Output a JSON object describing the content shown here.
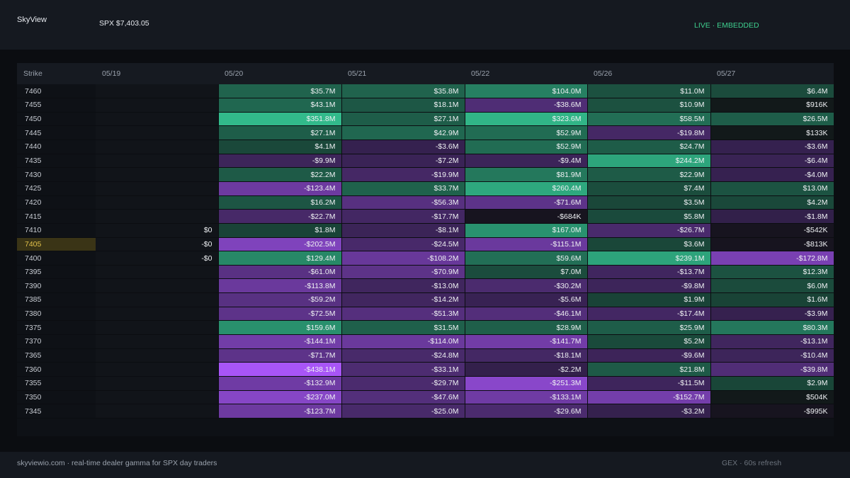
{
  "header": {
    "brand": "SkyView",
    "spx": "SPX $7,403.05",
    "live": "LIVE · EMBEDDED"
  },
  "grid": {
    "strike_header": "Strike",
    "dates": [
      "05/19",
      "05/20",
      "05/21",
      "05/22",
      "05/26",
      "05/27"
    ],
    "current_strike": "7405",
    "rows": [
      {
        "strike": "7460",
        "cells": [
          "",
          "$35.7M",
          "$35.8M",
          "$104.0M",
          "$11.0M",
          "$6.4M"
        ]
      },
      {
        "strike": "7455",
        "cells": [
          "",
          "$43.1M",
          "$18.1M",
          "-$38.6M",
          "$10.9M",
          "$916K"
        ]
      },
      {
        "strike": "7450",
        "cells": [
          "",
          "$351.8M",
          "$27.1M",
          "$323.6M",
          "$58.5M",
          "$26.5M"
        ]
      },
      {
        "strike": "7445",
        "cells": [
          "",
          "$27.1M",
          "$42.9M",
          "$52.9M",
          "-$19.8M",
          "$133K"
        ]
      },
      {
        "strike": "7440",
        "cells": [
          "",
          "$4.1M",
          "-$3.6M",
          "$52.9M",
          "$24.7M",
          "-$3.6M"
        ]
      },
      {
        "strike": "7435",
        "cells": [
          "",
          "-$9.9M",
          "-$7.2M",
          "-$9.4M",
          "$244.2M",
          "-$6.4M"
        ]
      },
      {
        "strike": "7430",
        "cells": [
          "",
          "$22.2M",
          "-$19.9M",
          "$81.9M",
          "$22.9M",
          "-$4.0M"
        ]
      },
      {
        "strike": "7425",
        "cells": [
          "",
          "-$123.4M",
          "$33.7M",
          "$260.4M",
          "$7.4M",
          "$13.0M"
        ]
      },
      {
        "strike": "7420",
        "cells": [
          "",
          "$16.2M",
          "-$56.3M",
          "-$71.6M",
          "$3.5M",
          "$4.2M"
        ]
      },
      {
        "strike": "7415",
        "cells": [
          "",
          "-$22.7M",
          "-$17.7M",
          "-$684K",
          "$5.8M",
          "-$1.8M"
        ]
      },
      {
        "strike": "7410",
        "cells": [
          "$0",
          "$1.8M",
          "-$8.1M",
          "$167.0M",
          "-$26.7M",
          "-$542K"
        ]
      },
      {
        "strike": "7405",
        "cells": [
          "-$0",
          "-$202.5M",
          "-$24.5M",
          "-$115.1M",
          "$3.6M",
          "-$813K"
        ]
      },
      {
        "strike": "7400",
        "cells": [
          "-$0",
          "$129.4M",
          "-$108.2M",
          "$59.6M",
          "$239.1M",
          "-$172.8M"
        ]
      },
      {
        "strike": "7395",
        "cells": [
          "",
          "-$61.0M",
          "-$70.9M",
          "$7.0M",
          "-$13.7M",
          "$12.3M"
        ]
      },
      {
        "strike": "7390",
        "cells": [
          "",
          "-$113.8M",
          "-$13.0M",
          "-$30.2M",
          "-$9.8M",
          "$6.0M"
        ]
      },
      {
        "strike": "7385",
        "cells": [
          "",
          "-$59.2M",
          "-$14.2M",
          "-$5.6M",
          "$1.9M",
          "$1.6M"
        ]
      },
      {
        "strike": "7380",
        "cells": [
          "",
          "-$72.5M",
          "-$51.3M",
          "-$46.1M",
          "-$17.4M",
          "-$3.9M"
        ]
      },
      {
        "strike": "7375",
        "cells": [
          "",
          "$159.6M",
          "$31.5M",
          "$28.9M",
          "$25.9M",
          "$80.3M"
        ]
      },
      {
        "strike": "7370",
        "cells": [
          "",
          "-$144.1M",
          "-$114.0M",
          "-$141.7M",
          "$5.2M",
          "-$13.1M"
        ]
      },
      {
        "strike": "7365",
        "cells": [
          "",
          "-$71.7M",
          "-$24.8M",
          "-$18.1M",
          "-$9.6M",
          "-$10.4M"
        ]
      },
      {
        "strike": "7360",
        "cells": [
          "",
          "-$438.1M",
          "-$33.1M",
          "-$2.2M",
          "$21.8M",
          "-$39.8M"
        ]
      },
      {
        "strike": "7355",
        "cells": [
          "",
          "-$132.9M",
          "-$29.7M",
          "-$251.3M",
          "-$11.5M",
          "$2.9M"
        ]
      },
      {
        "strike": "7350",
        "cells": [
          "",
          "-$237.0M",
          "-$47.6M",
          "-$133.1M",
          "-$152.7M",
          "$504K"
        ]
      },
      {
        "strike": "7345",
        "cells": [
          "",
          "-$123.7M",
          "-$25.0M",
          "-$29.6M",
          "-$3.2M",
          "-$995K"
        ]
      }
    ]
  },
  "colors": {
    "positive": "#35c996",
    "negative": "#a855f7",
    "neutral": "#0e1116",
    "current_row": "#3a3416"
  },
  "footer": {
    "left": "skyviewio.com · real-time dealer gamma for SPX day traders",
    "right": "GEX · 60s refresh"
  }
}
